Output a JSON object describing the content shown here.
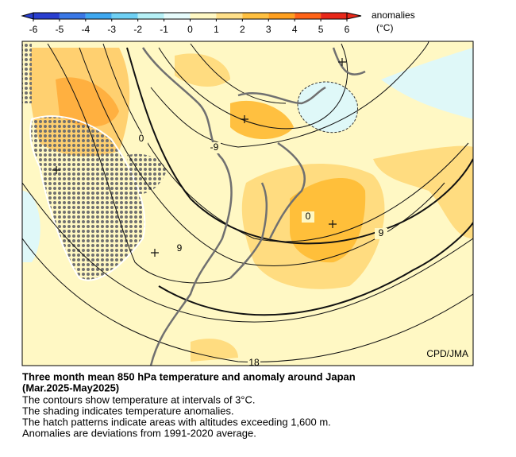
{
  "colorbar": {
    "label": "anomalies",
    "unit": "(°C)",
    "ticks": [
      -6,
      -5,
      -4,
      -3,
      -2,
      -1,
      0,
      1,
      2,
      3,
      4,
      5,
      6
    ],
    "colors": [
      "#2a3fd0",
      "#3a78e6",
      "#3fa8f0",
      "#6fd0f4",
      "#b6f0f6",
      "#e6fbfb",
      "#fff8c4",
      "#ffe08a",
      "#ffc040",
      "#ffa020",
      "#ff6418",
      "#e8281a"
    ]
  },
  "map": {
    "contour_labels": [
      0,
      -9,
      0,
      9,
      9,
      18
    ],
    "credit": "CPD/JMA"
  },
  "caption": {
    "title": "Three month mean 850 hPa temperature and anomaly around Japan",
    "period": "(Mar.2025-May2025)",
    "lines": [
      "The contours show temperature at intervals of 3°C.",
      "The shading indicates temperature anomalies.",
      "The hatch patterns indicate areas with altitudes exceeding 1,600 m.",
      "Anomalies are deviations from 1991-2020 average."
    ]
  }
}
